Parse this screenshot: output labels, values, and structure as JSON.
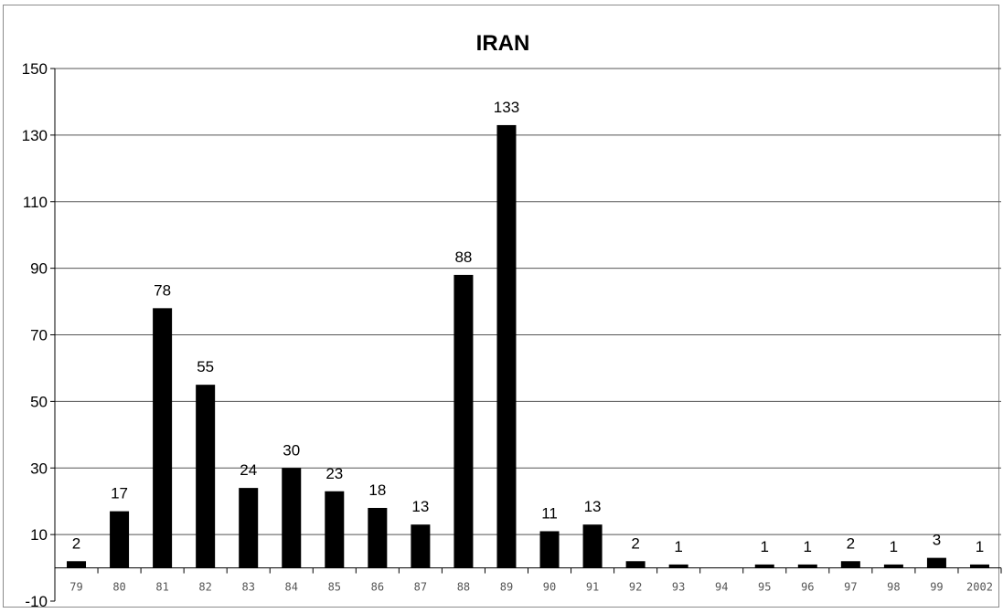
{
  "chart_data": {
    "type": "bar",
    "title": "IRAN",
    "xlabel": "",
    "ylabel": "",
    "ylim": [
      -10,
      150
    ],
    "yticks": [
      -10,
      10,
      30,
      50,
      70,
      90,
      110,
      130,
      150
    ],
    "grid": true,
    "legend": "none",
    "categories": [
      "79",
      "80",
      "81",
      "82",
      "83",
      "84",
      "85",
      "86",
      "87",
      "88",
      "89",
      "90",
      "91",
      "92",
      "93",
      "94",
      "95",
      "96",
      "97",
      "98",
      "99",
      "2002"
    ],
    "values": [
      2,
      17,
      78,
      55,
      24,
      30,
      23,
      18,
      13,
      88,
      133,
      11,
      13,
      2,
      1,
      0,
      1,
      1,
      2,
      1,
      3,
      1
    ],
    "data_labels": [
      "2",
      "17",
      "78",
      "55",
      "24",
      "30",
      "23",
      "18",
      "13",
      "88",
      "133",
      "11",
      "13",
      "2",
      "1",
      "",
      "1",
      "1",
      "2",
      "1",
      "3",
      "1"
    ],
    "bar_color": "#000000",
    "grid_color": "#555555"
  }
}
